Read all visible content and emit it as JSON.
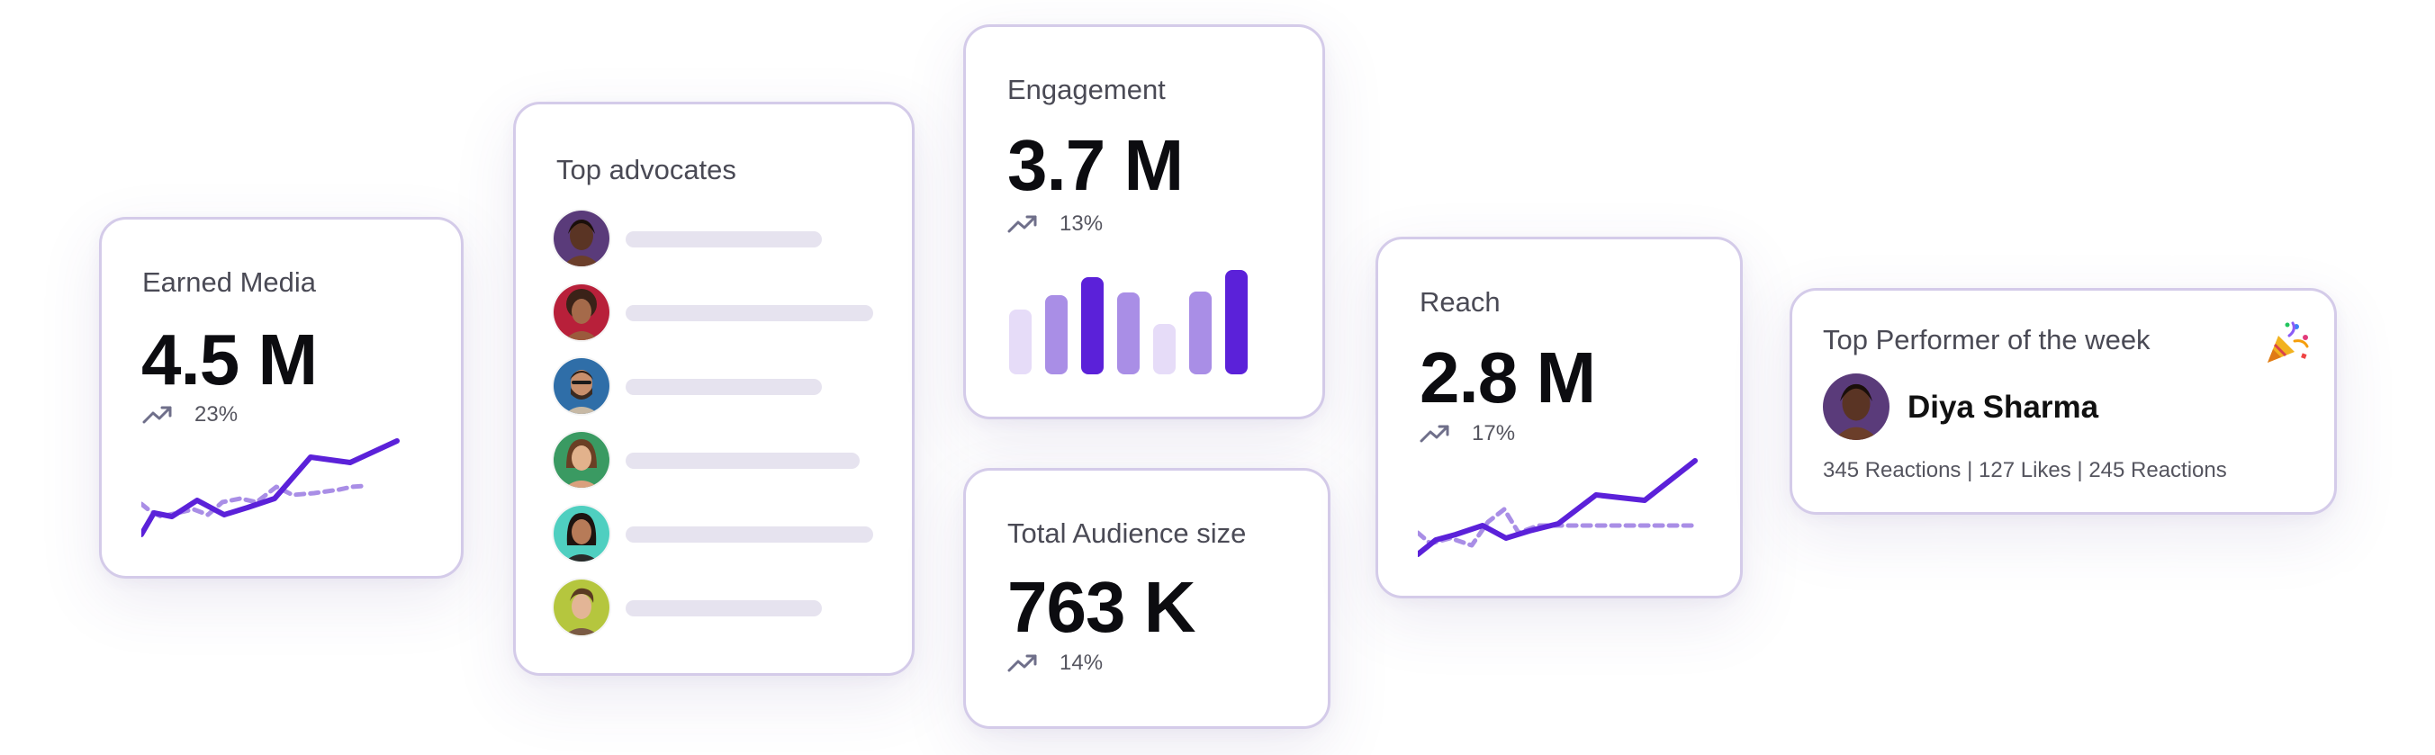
{
  "colors": {
    "accent": "#5b21d9",
    "accent_light": "#a98ee6",
    "accent_pale": "#e6dcf8",
    "card_border": "#d4cbe9",
    "placeholder": "#e6e3ef"
  },
  "earned_media": {
    "title": "Earned Media",
    "value": "4.5 M",
    "trend_icon": "trending-up-icon",
    "change": "23%"
  },
  "top_advocates": {
    "title": "Top advocates",
    "rows": [
      {
        "avatar": "avatar-1"
      },
      {
        "avatar": "avatar-2"
      },
      {
        "avatar": "avatar-3"
      },
      {
        "avatar": "avatar-4"
      },
      {
        "avatar": "avatar-5"
      },
      {
        "avatar": "avatar-6"
      }
    ]
  },
  "engagement": {
    "title": "Engagement",
    "value": "3.7 M",
    "trend_icon": "trending-up-icon",
    "change": "13%"
  },
  "total_audience": {
    "title": "Total Audience size",
    "value": "763 K",
    "trend_icon": "trending-up-icon",
    "change": "14%"
  },
  "reach": {
    "title": "Reach",
    "value": "2.8 M",
    "trend_icon": "trending-up-icon",
    "change": "17%"
  },
  "top_performer": {
    "title": "Top Performer of the week",
    "celebration_icon": "party-popper-icon",
    "name": "Diya Sharma",
    "stats": "345 Reactions | 127 Likes | 245 Reactions"
  }
}
